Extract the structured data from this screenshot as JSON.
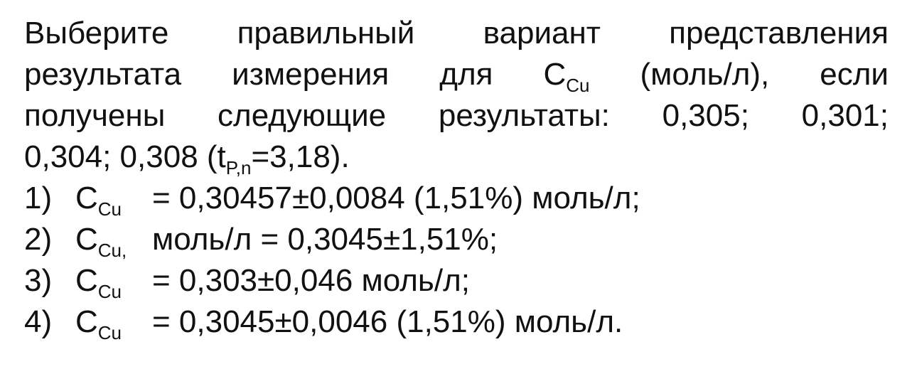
{
  "question": {
    "line1": "Выберите правильный вариант представления",
    "line2_pre": "результата измерения для C",
    "line2_sub": "Cu",
    "line2_post": " (моль/л), если",
    "line3": "получены следующие результаты: 0,305; 0,301;",
    "line4_pre": "0,304; 0,308 (t",
    "line4_sub": "P,n",
    "line4_post": "=3,18)."
  },
  "options": [
    {
      "num": "1)",
      "c": "C",
      "sub": "Cu",
      "text": " = 0,30457±0,0084 (1,51%) моль/л;"
    },
    {
      "num": "2)",
      "c": "C",
      "sub": "Cu,",
      "text": " моль/л = 0,3045±1,51%;"
    },
    {
      "num": "3)",
      "c": "C",
      "sub": "Cu",
      "text": " = 0,303±0,046 моль/л;"
    },
    {
      "num": "4)",
      "c": "C",
      "sub": "Cu",
      "text": " = 0,3045±0,0046 (1,51%) моль/л."
    }
  ]
}
